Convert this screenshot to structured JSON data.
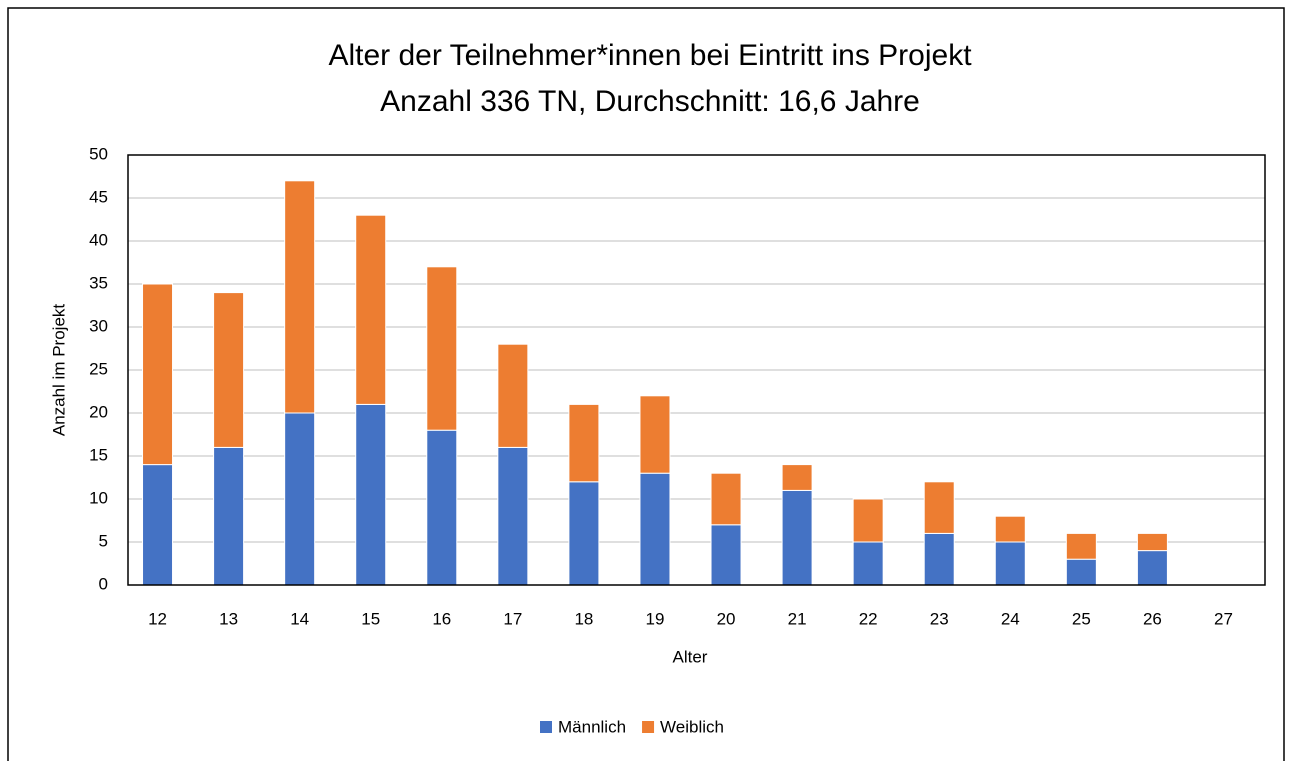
{
  "chart_data": {
    "type": "stacked_bar",
    "title": "Alter der Teilnehmer*innen bei Eintritt ins Projekt",
    "subtitle": "Anzahl 336 TN, Durchschnitt: 16,6 Jahre",
    "x_label": "Alter",
    "y_label": "Anzahl im Projekt",
    "categories": [
      "12",
      "13",
      "14",
      "15",
      "16",
      "17",
      "18",
      "19",
      "20",
      "21",
      "22",
      "23",
      "24",
      "25",
      "26",
      "27"
    ],
    "series": [
      {
        "name": "Männlich",
        "color": "#4472c4",
        "values": [
          14,
          16,
          20,
          21,
          18,
          16,
          12,
          13,
          7,
          11,
          5,
          6,
          5,
          3,
          4,
          0
        ]
      },
      {
        "name": "Weiblich",
        "color": "#ed7d31",
        "values": [
          21,
          18,
          27,
          22,
          19,
          12,
          9,
          9,
          6,
          3,
          5,
          6,
          3,
          3,
          2,
          0
        ]
      }
    ],
    "ylim": [
      0,
      50
    ],
    "yticks": [
      0,
      5,
      10,
      15,
      20,
      25,
      30,
      35,
      40,
      45,
      50
    ],
    "grid": true,
    "legend": "bottom"
  }
}
